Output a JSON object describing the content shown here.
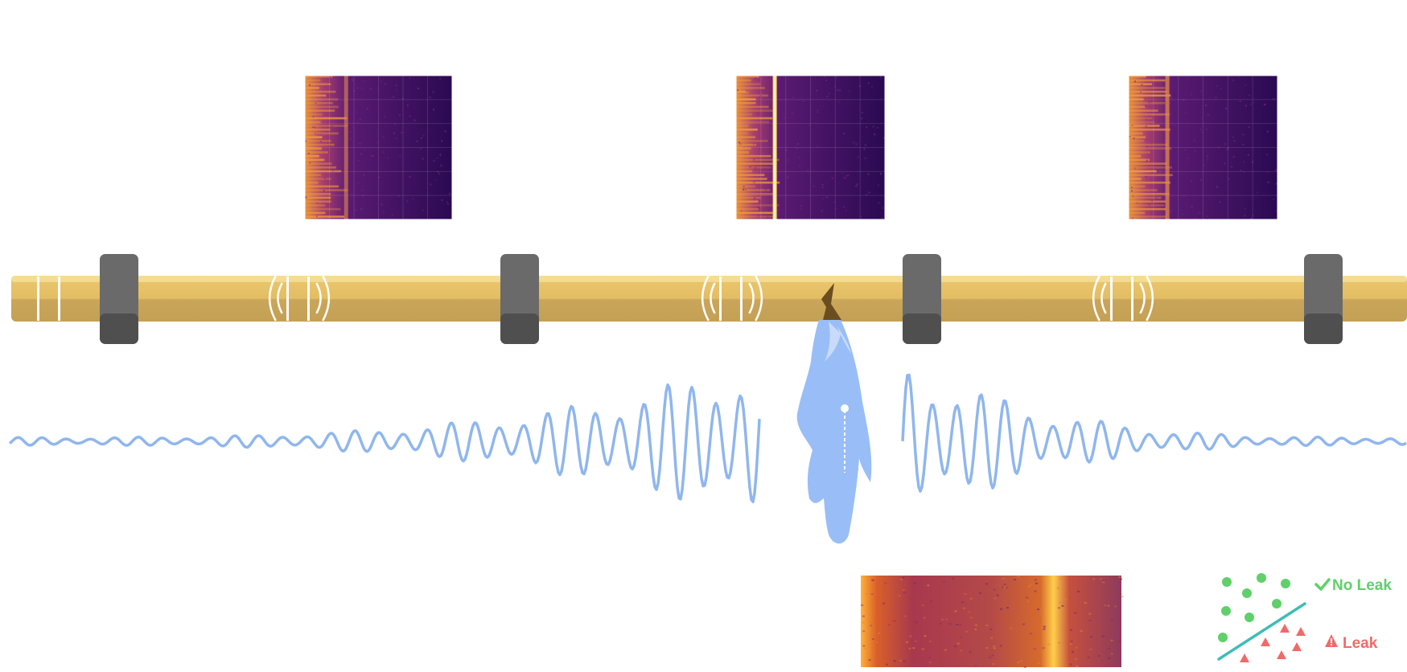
{
  "colors": {
    "pipe_top": "#e8c46a",
    "pipe_bottom": "#c9a65a",
    "clamp": "#5a5a5a",
    "clamp_top": "#6a6a6a",
    "wave": "#8fb6ee",
    "leak_jet": "#99bdf7",
    "crack": "#6b4e1f",
    "no_leak": "#5fd06a",
    "leak": "#f06a6a",
    "divider": "#3dbdb7",
    "spec_dark": "#2a0a52",
    "spec_hot": "#ffd060"
  },
  "icons": {
    "sensor": "sound-wave-icon",
    "crack": "crack-icon",
    "check": "check-icon",
    "warning": "warning-icon"
  },
  "legend": {
    "no_leak_label": "No Leak",
    "leak_label": "Leak"
  }
}
